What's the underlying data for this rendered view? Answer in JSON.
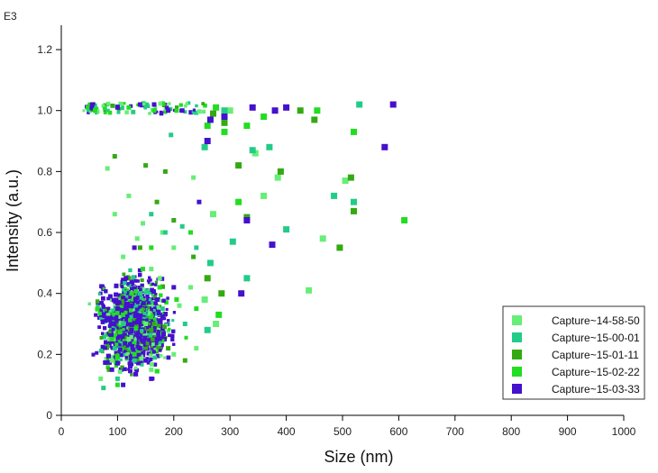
{
  "chart_data": {
    "type": "scatter",
    "xlabel": "Size (nm)",
    "ylabel": "Intensity (a.u.)",
    "y_multiplier_label": "E3",
    "xlim": [
      0,
      1000
    ],
    "ylim": [
      0,
      1.28
    ],
    "x_ticks": [
      0,
      100,
      200,
      300,
      400,
      500,
      600,
      700,
      800,
      900,
      1000
    ],
    "y_ticks": [
      0,
      0.2,
      0.4,
      0.6,
      0.8,
      1.0,
      1.2
    ],
    "x_tick_labels": [
      "0",
      "100",
      "200",
      "300",
      "400",
      "500",
      "600",
      "700",
      "800",
      "900",
      "1000"
    ],
    "y_tick_labels": [
      "0",
      "0.2",
      "0.4",
      "0.6",
      "0.8",
      "1.0",
      "1.2"
    ],
    "grid": false,
    "legend_position": "bottom-right",
    "series": [
      {
        "name": "Capture~14-58-50",
        "color": "#66ee77",
        "points": [
          [
            82,
            0.81
          ],
          [
            120,
            0.72
          ],
          [
            145,
            0.63
          ],
          [
            180,
            0.6
          ],
          [
            235,
            0.78
          ],
          [
            270,
            0.66
          ],
          [
            300,
            1.0
          ],
          [
            345,
            0.86
          ],
          [
            360,
            0.72
          ],
          [
            385,
            0.78
          ],
          [
            440,
            0.41
          ],
          [
            465,
            0.58
          ],
          [
            505,
            0.77
          ],
          [
            110,
            0.52
          ],
          [
            160,
            0.48
          ],
          [
            200,
            0.55
          ],
          [
            230,
            0.42
          ],
          [
            255,
            0.38
          ],
          [
            275,
            0.3
          ],
          [
            95,
            0.66
          ],
          [
            135,
            0.58
          ],
          [
            175,
            0.45
          ],
          [
            210,
            0.36
          ],
          [
            150,
            0.3
          ],
          [
            120,
            0.25
          ],
          [
            90,
            0.18
          ],
          [
            70,
            0.12
          ],
          [
            160,
            0.15
          ],
          [
            200,
            0.2
          ],
          [
            240,
            0.22
          ]
        ]
      },
      {
        "name": "Capture~15-00-01",
        "color": "#22cc88",
        "points": [
          [
            195,
            0.92
          ],
          [
            255,
            0.88
          ],
          [
            290,
            1.0
          ],
          [
            340,
            0.87
          ],
          [
            370,
            0.88
          ],
          [
            400,
            0.61
          ],
          [
            485,
            0.72
          ],
          [
            530,
            1.02
          ],
          [
            520,
            0.7
          ],
          [
            160,
            0.66
          ],
          [
            185,
            0.6
          ],
          [
            215,
            0.62
          ],
          [
            240,
            0.55
          ],
          [
            265,
            0.5
          ],
          [
            305,
            0.57
          ],
          [
            330,
            0.45
          ],
          [
            140,
            0.4
          ],
          [
            110,
            0.3
          ],
          [
            95,
            0.22
          ],
          [
            180,
            0.35
          ],
          [
            220,
            0.3
          ],
          [
            260,
            0.28
          ],
          [
            130,
            0.18
          ],
          [
            100,
            0.12
          ],
          [
            75,
            0.09
          ]
        ]
      },
      {
        "name": "Capture~15-01-11",
        "color": "#33aa11",
        "points": [
          [
            95,
            0.85
          ],
          [
            150,
            0.82
          ],
          [
            185,
            0.8
          ],
          [
            270,
            0.99
          ],
          [
            290,
            0.96
          ],
          [
            315,
            0.82
          ],
          [
            330,
            0.65
          ],
          [
            390,
            0.8
          ],
          [
            425,
            1.0
          ],
          [
            450,
            0.97
          ],
          [
            515,
            0.78
          ],
          [
            520,
            0.67
          ],
          [
            495,
            0.55
          ],
          [
            170,
            0.7
          ],
          [
            200,
            0.64
          ],
          [
            235,
            0.52
          ],
          [
            260,
            0.45
          ],
          [
            285,
            0.4
          ],
          [
            140,
            0.55
          ],
          [
            120,
            0.45
          ],
          [
            100,
            0.35
          ],
          [
            160,
            0.28
          ],
          [
            190,
            0.22
          ],
          [
            220,
            0.18
          ],
          [
            85,
            0.15
          ]
        ]
      },
      {
        "name": "Capture~15-02-22",
        "color": "#22dd22",
        "points": [
          [
            60,
            1.0
          ],
          [
            120,
            1.01
          ],
          [
            165,
            1.0
          ],
          [
            205,
            1.0
          ],
          [
            260,
            0.95
          ],
          [
            275,
            1.01
          ],
          [
            290,
            0.93
          ],
          [
            330,
            0.95
          ],
          [
            360,
            0.98
          ],
          [
            455,
            1.0
          ],
          [
            520,
            0.93
          ],
          [
            610,
            0.64
          ],
          [
            315,
            0.7
          ],
          [
            230,
            0.6
          ],
          [
            160,
            0.55
          ],
          [
            145,
            0.48
          ],
          [
            125,
            0.4
          ],
          [
            110,
            0.33
          ],
          [
            90,
            0.25
          ],
          [
            175,
            0.42
          ],
          [
            205,
            0.38
          ],
          [
            240,
            0.35
          ],
          [
            280,
            0.33
          ],
          [
            130,
            0.2
          ],
          [
            100,
            0.1
          ]
        ]
      },
      {
        "name": "Capture~15-03-33",
        "color": "#4411cc",
        "points": [
          [
            55,
            1.02
          ],
          [
            100,
            1.01
          ],
          [
            140,
            1.02
          ],
          [
            165,
            1.02
          ],
          [
            190,
            1.0
          ],
          [
            215,
            1.0
          ],
          [
            265,
            0.97
          ],
          [
            290,
            0.98
          ],
          [
            340,
            1.01
          ],
          [
            380,
            1.0
          ],
          [
            400,
            1.01
          ],
          [
            590,
            1.02
          ],
          [
            260,
            0.9
          ],
          [
            245,
            0.7
          ],
          [
            330,
            0.64
          ],
          [
            375,
            0.56
          ],
          [
            320,
            0.4
          ],
          [
            575,
            0.88
          ],
          [
            130,
            0.55
          ],
          [
            115,
            0.45
          ],
          [
            100,
            0.35
          ],
          [
            125,
            0.28
          ],
          [
            140,
            0.22
          ],
          [
            150,
            0.18
          ],
          [
            160,
            0.12
          ],
          [
            110,
            0.1
          ],
          [
            90,
            0.15
          ],
          [
            170,
            0.25
          ],
          [
            180,
            0.32
          ],
          [
            200,
            0.42
          ]
        ]
      }
    ]
  },
  "legend": {
    "items": [
      {
        "label": "Capture~14-58-50",
        "color": "#66ee77"
      },
      {
        "label": "Capture~15-00-01",
        "color": "#22cc88"
      },
      {
        "label": "Capture~15-01-11",
        "color": "#33aa11"
      },
      {
        "label": "Capture~15-02-22",
        "color": "#22dd22"
      },
      {
        "label": "Capture~15-03-33",
        "color": "#4411cc"
      }
    ]
  }
}
